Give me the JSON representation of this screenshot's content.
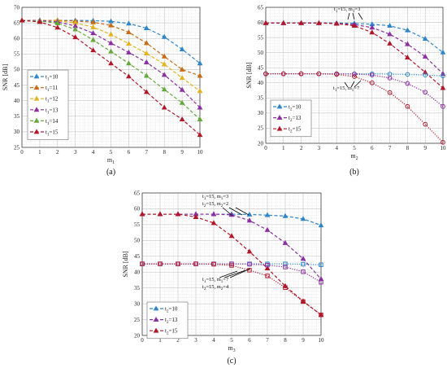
{
  "chart_data": [
    {
      "id": "a",
      "type": "line",
      "caption": "(a)",
      "xlabel_main": "m",
      "xlabel_sub": "1",
      "ylabel": "SNR [dB]",
      "xlim": [
        0,
        10
      ],
      "ylim": [
        25,
        70
      ],
      "xticks": [
        0,
        1,
        2,
        3,
        4,
        5,
        6,
        7,
        8,
        9,
        10
      ],
      "yticks": [
        25,
        30,
        35,
        40,
        45,
        50,
        55,
        60,
        65,
        70
      ],
      "grid": true,
      "legend_position": "bottom-left",
      "x": [
        0,
        1,
        2,
        3,
        4,
        5,
        6,
        7,
        8,
        9,
        10
      ],
      "series": [
        {
          "name": "t1=10",
          "label_main": "t",
          "label_sub": "1",
          "label_val": "=10",
          "color": "#2e86c9",
          "marker": "triangle",
          "values": [
            65.8,
            65.8,
            65.8,
            65.8,
            65.7,
            65.5,
            64.8,
            63.3,
            60.5,
            56.5,
            52.0
          ]
        },
        {
          "name": "t1=11",
          "label_main": "t",
          "label_sub": "1",
          "label_val": "=11",
          "color": "#c86a14",
          "marker": "triangle",
          "values": [
            65.8,
            65.8,
            65.8,
            65.6,
            65.2,
            64.2,
            62.0,
            58.5,
            54.2,
            50.0,
            48.0
          ]
        },
        {
          "name": "t1=12",
          "label_main": "t",
          "label_sub": "1",
          "label_val": "=12",
          "color": "#e3b21d",
          "marker": "triangle",
          "values": [
            65.8,
            65.8,
            65.6,
            65.0,
            63.6,
            61.3,
            58.3,
            55.2,
            51.7,
            47.3,
            43.1
          ]
        },
        {
          "name": "t1=13",
          "label_main": "t",
          "label_sub": "1",
          "label_val": "=13",
          "color": "#8a2ea0",
          "marker": "triangle",
          "values": [
            65.8,
            65.8,
            65.3,
            64.0,
            61.7,
            58.5,
            55.5,
            52.3,
            48.3,
            43.5,
            37.8
          ]
        },
        {
          "name": "t1=14",
          "label_main": "t",
          "label_sub": "1",
          "label_val": "=14",
          "color": "#63a83a",
          "marker": "triangle",
          "values": [
            65.8,
            65.6,
            64.9,
            62.9,
            59.5,
            55.8,
            52.0,
            48.0,
            43.6,
            39.3,
            34.0
          ]
        },
        {
          "name": "t1=15",
          "label_main": "t",
          "label_sub": "1",
          "label_val": "=15",
          "color": "#b0182a",
          "marker": "triangle",
          "values": [
            65.8,
            65.3,
            63.5,
            60.4,
            56.2,
            52.0,
            47.8,
            42.8,
            37.8,
            34.0,
            29.0
          ]
        }
      ]
    },
    {
      "id": "b",
      "type": "line",
      "caption": "(b)",
      "xlabel_main": "m",
      "xlabel_sub": "2",
      "ylabel": "SNR [dB]",
      "xlim": [
        0,
        10
      ],
      "ylim": [
        20,
        65
      ],
      "xticks": [
        0,
        1,
        2,
        3,
        4,
        5,
        6,
        7,
        8,
        9,
        10
      ],
      "yticks": [
        20,
        25,
        30,
        35,
        40,
        45,
        50,
        55,
        60,
        65
      ],
      "grid": true,
      "legend_position": "bottom-left",
      "x": [
        0,
        1,
        2,
        3,
        4,
        5,
        6,
        7,
        8,
        9,
        10
      ],
      "series": [
        {
          "name": "t2=10 (t1=15, m1=3)",
          "label_main": "t",
          "label_sub": "2",
          "label_val": "=10",
          "color": "#2e86c9",
          "marker": "triangle",
          "values": [
            59.8,
            59.8,
            59.8,
            59.8,
            59.8,
            59.7,
            59.4,
            58.9,
            57.4,
            54.6,
            50.1
          ]
        },
        {
          "name": "t2=13 (t1=15, m1=3)",
          "label_main": "t",
          "label_sub": "2",
          "label_val": "=13",
          "color": "#8a2ea0",
          "marker": "triangle",
          "values": [
            59.8,
            59.8,
            59.8,
            59.8,
            59.7,
            59.3,
            58.3,
            56.1,
            52.8,
            48.7,
            43.0
          ]
        },
        {
          "name": "t2=15 (t1=15, m1=3)",
          "label_main": "t",
          "label_sub": "2",
          "label_val": "=15",
          "color": "#b0182a",
          "marker": "triangle",
          "values": [
            59.8,
            59.8,
            59.8,
            59.8,
            59.6,
            58.9,
            56.7,
            53.0,
            48.4,
            43.5,
            38.3
          ]
        },
        {
          "name": "t2=10 (t1=15, m1=7)",
          "color": "#2e86c9",
          "marker": "circle",
          "values": [
            43.0,
            43.0,
            43.0,
            43.0,
            43.0,
            43.0,
            43.0,
            42.9,
            42.8,
            42.6,
            42.3
          ]
        },
        {
          "name": "t2=13 (t1=15, m1=7)",
          "color": "#8a2ea0",
          "marker": "circle",
          "values": [
            43.0,
            43.0,
            43.0,
            43.0,
            43.0,
            42.9,
            42.6,
            41.6,
            39.8,
            36.9,
            32.2
          ]
        },
        {
          "name": "t2=15 (t1=15, m1=7)",
          "color": "#b0182a",
          "marker": "circle",
          "values": [
            43.0,
            43.0,
            43.0,
            43.0,
            42.8,
            42.1,
            40.0,
            36.8,
            32.2,
            26.3,
            20.3
          ]
        }
      ],
      "annotations": [
        {
          "text_top": "t",
          "sub_top": "1",
          "mid_top": "=15, m",
          "sub2_top": "1",
          "end_top": "=3"
        },
        {
          "text_top": "t",
          "sub_top": "1",
          "mid_top": "=15, m",
          "sub2_top": "1",
          "end_top": "=7"
        }
      ]
    },
    {
      "id": "c",
      "type": "line",
      "caption": "(c)",
      "xlabel_main": "m",
      "xlabel_sub": "3",
      "ylabel": "SNR [dB]",
      "xlim": [
        0,
        10
      ],
      "ylim": [
        20,
        65
      ],
      "xticks": [
        0,
        1,
        2,
        3,
        4,
        5,
        6,
        7,
        8,
        9,
        10
      ],
      "yticks": [
        20,
        25,
        30,
        35,
        40,
        45,
        50,
        55,
        60,
        65
      ],
      "grid": true,
      "legend_position": "bottom-left",
      "x": [
        0,
        1,
        2,
        3,
        4,
        5,
        6,
        7,
        8,
        9,
        10
      ],
      "series": [
        {
          "name": "t2=10 (t1=15, m1=3, t2=15, m2=2)",
          "label_main": "t",
          "label_sub": "2",
          "label_val": "=10",
          "color": "#2e86c9",
          "marker": "triangle",
          "values": [
            58.3,
            58.3,
            58.3,
            58.3,
            58.3,
            58.3,
            58.2,
            58.0,
            57.7,
            56.8,
            54.8
          ]
        },
        {
          "name": "t2=13 (t1=15, m1=3, t2=15, m2=2)",
          "label_main": "t",
          "label_sub": "2",
          "label_val": "=13",
          "color": "#8a2ea0",
          "marker": "triangle",
          "values": [
            58.3,
            58.3,
            58.3,
            58.3,
            58.3,
            58.1,
            56.3,
            53.3,
            49.2,
            44.2,
            37.8
          ]
        },
        {
          "name": "t2=15 (t1=15, m1=3, t2=15, m2=2)",
          "label_main": "t",
          "label_sub": "2",
          "label_val": "=15",
          "color": "#b0182a",
          "marker": "triangle",
          "values": [
            58.3,
            58.3,
            58.3,
            57.4,
            55.5,
            51.4,
            46.5,
            41.2,
            35.6,
            30.8,
            26.5
          ]
        },
        {
          "name": "t2=10 (t1=15, m1=7, t2=15, m2=4)",
          "color": "#2e86c9",
          "marker": "square",
          "values": [
            42.6,
            42.6,
            42.6,
            42.6,
            42.6,
            42.6,
            42.6,
            42.6,
            42.6,
            42.5,
            42.3
          ]
        },
        {
          "name": "t2=13 (t1=15, m1=7, t2=15, m2=4)",
          "color": "#8a2ea0",
          "marker": "square",
          "values": [
            42.6,
            42.6,
            42.6,
            42.6,
            42.6,
            42.6,
            42.5,
            42.2,
            41.6,
            40.1,
            36.8
          ]
        },
        {
          "name": "t2=15 (t1=15, m1=7, t2=15, m2=4)",
          "color": "#b0182a",
          "marker": "square",
          "values": [
            42.6,
            42.6,
            42.6,
            42.6,
            42.5,
            42.1,
            40.6,
            38.8,
            35.1,
            30.7,
            26.5
          ]
        }
      ],
      "annotations": [
        {
          "l1": "t",
          "l1s": "1",
          "l1m": "=15, m",
          "l1s2": "1",
          "l1e": "=3",
          "l2": "t",
          "l2s": "2",
          "l2m": "=15, m",
          "l2s2": "2",
          "l2e": "=2"
        },
        {
          "l1": "t",
          "l1s": "1",
          "l1m": "=15, m",
          "l1s2": "1",
          "l1e": "=7",
          "l2": "t",
          "l2s": "2",
          "l2m": "=15, m",
          "l2s2": "2",
          "l2e": "=4"
        }
      ]
    }
  ]
}
